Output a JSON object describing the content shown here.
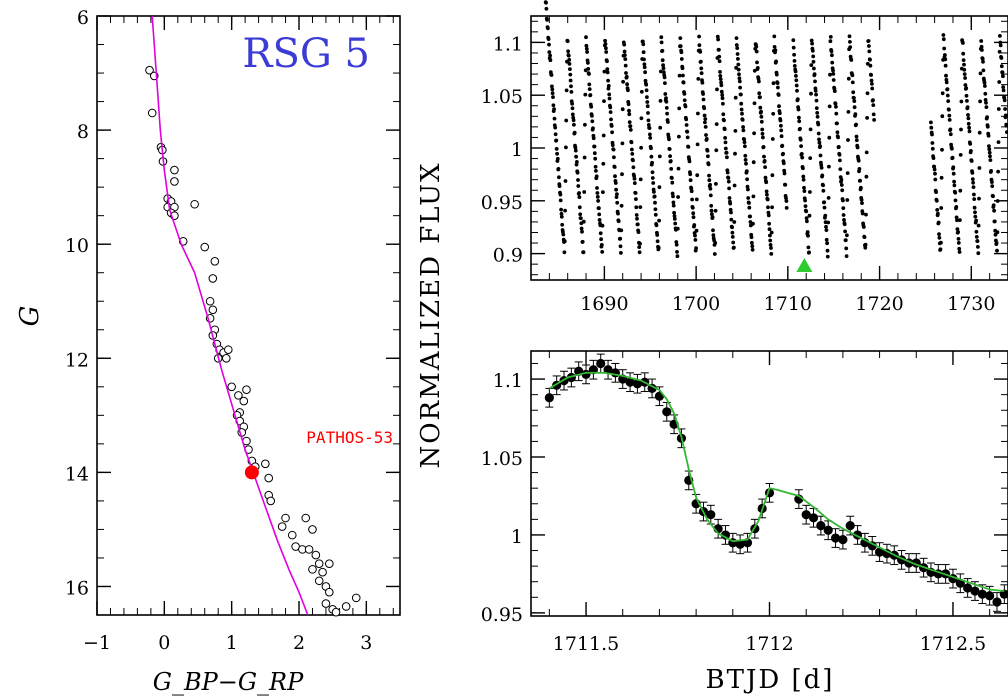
{
  "chart_data": [
    {
      "type": "scatter",
      "title": "RSG 5",
      "xlabel": "G_BP−G_RP",
      "ylabel": "G",
      "xlim": [
        -1,
        3.5
      ],
      "ylim": [
        16.5,
        6
      ],
      "x_ticks": [
        "−1",
        "0",
        "1",
        "2",
        "3"
      ],
      "x_tick_values": [
        -1,
        0,
        1,
        2,
        3
      ],
      "y_ticks": [
        "6",
        "8",
        "10",
        "12",
        "14",
        "16"
      ],
      "y_tick_values": [
        6,
        8,
        10,
        12,
        14,
        16
      ],
      "title_color": "#3b3bd6",
      "isochrone_color": "#e000e0",
      "highlight_color": "#ff0000",
      "highlight": {
        "label": "PATHOS-53",
        "x": 1.3,
        "y": 14.0
      },
      "isochrone": [
        [
          -0.18,
          6.0
        ],
        [
          -0.12,
          7.0
        ],
        [
          -0.06,
          8.0
        ],
        [
          0.0,
          8.7
        ],
        [
          0.08,
          9.4
        ],
        [
          0.25,
          10.0
        ],
        [
          0.45,
          10.5
        ],
        [
          0.65,
          11.3
        ],
        [
          0.85,
          12.2
        ],
        [
          1.05,
          13.0
        ],
        [
          1.2,
          13.6
        ],
        [
          1.35,
          14.1
        ],
        [
          1.5,
          14.6
        ],
        [
          1.68,
          15.2
        ],
        [
          1.85,
          15.7
        ],
        [
          2.0,
          16.1
        ],
        [
          2.13,
          16.5
        ]
      ],
      "stars": [
        [
          -0.22,
          6.95
        ],
        [
          -0.15,
          7.05
        ],
        [
          -0.18,
          7.7
        ],
        [
          -0.05,
          8.3
        ],
        [
          -0.03,
          8.35
        ],
        [
          -0.02,
          8.55
        ],
        [
          0.15,
          8.7
        ],
        [
          0.15,
          8.9
        ],
        [
          0.05,
          9.2
        ],
        [
          0.1,
          9.25
        ],
        [
          0.05,
          9.35
        ],
        [
          0.15,
          9.35
        ],
        [
          0.1,
          9.45
        ],
        [
          0.15,
          9.5
        ],
        [
          0.45,
          9.3
        ],
        [
          0.28,
          9.95
        ],
        [
          0.6,
          10.05
        ],
        [
          0.75,
          10.3
        ],
        [
          0.72,
          10.6
        ],
        [
          0.68,
          11.0
        ],
        [
          0.72,
          11.15
        ],
        [
          0.68,
          11.3
        ],
        [
          0.75,
          11.5
        ],
        [
          0.72,
          11.6
        ],
        [
          0.78,
          11.75
        ],
        [
          0.82,
          11.85
        ],
        [
          0.88,
          11.9
        ],
        [
          0.95,
          11.85
        ],
        [
          0.8,
          12.0
        ],
        [
          0.92,
          12.0
        ],
        [
          1.0,
          12.5
        ],
        [
          1.22,
          12.55
        ],
        [
          1.1,
          12.65
        ],
        [
          1.18,
          12.75
        ],
        [
          1.12,
          12.95
        ],
        [
          1.08,
          13.0
        ],
        [
          1.12,
          13.1
        ],
        [
          1.18,
          13.2
        ],
        [
          1.15,
          13.3
        ],
        [
          1.22,
          13.45
        ],
        [
          1.25,
          13.6
        ],
        [
          1.3,
          13.8
        ],
        [
          1.35,
          13.9
        ],
        [
          1.5,
          13.85
        ],
        [
          1.55,
          14.1
        ],
        [
          1.55,
          14.4
        ],
        [
          1.58,
          14.5
        ],
        [
          1.8,
          14.8
        ],
        [
          2.1,
          14.8
        ],
        [
          1.75,
          14.95
        ],
        [
          1.9,
          15.1
        ],
        [
          2.2,
          15.0
        ],
        [
          1.95,
          15.3
        ],
        [
          2.05,
          15.35
        ],
        [
          2.15,
          15.35
        ],
        [
          2.25,
          15.45
        ],
        [
          2.3,
          15.6
        ],
        [
          2.2,
          15.7
        ],
        [
          2.35,
          15.75
        ],
        [
          2.45,
          15.6
        ],
        [
          2.3,
          15.9
        ],
        [
          2.4,
          16.0
        ],
        [
          2.45,
          16.1
        ],
        [
          2.4,
          16.3
        ],
        [
          2.5,
          16.4
        ],
        [
          2.55,
          16.45
        ],
        [
          2.7,
          16.35
        ],
        [
          2.85,
          16.2
        ]
      ]
    },
    {
      "type": "scatter",
      "xlabel": "",
      "ylabel": "",
      "xlim": [
        1682,
        1734
      ],
      "ylim": [
        0.875,
        1.125
      ],
      "x_ticks": [
        "1690",
        "1700",
        "1710",
        "1720",
        "1730"
      ],
      "x_tick_values": [
        1690,
        1700,
        1710,
        1720,
        1730
      ],
      "y_ticks": [
        "1.1",
        "1.05",
        "1",
        "0.95",
        "0.9"
      ],
      "y_tick_values": [
        1.1,
        1.05,
        1.0,
        0.95,
        0.9
      ],
      "marker_color": "#000000",
      "arrow_color": "#2ecc2e",
      "arrow_x": 1711.8,
      "period": 2.05,
      "flux_min": 0.9,
      "flux_max": 1.105,
      "segments": [
        [
          1683.2,
          1709.9
        ],
        [
          1710.6,
          1719.4
        ],
        [
          1725.6,
          1733.9
        ]
      ],
      "cadence": 0.04
    },
    {
      "type": "line",
      "xlabel": "BTJD [d]",
      "ylabel": "NORMALIZED FLUX",
      "xlim": [
        1711.35,
        1712.65
      ],
      "ylim": [
        0.948,
        1.118
      ],
      "x_ticks": [
        "1711.5",
        "1712",
        "1712.5"
      ],
      "x_tick_values": [
        1711.5,
        1712.0,
        1712.5
      ],
      "y_ticks": [
        "1.1",
        "1.05",
        "1",
        "0.95"
      ],
      "y_tick_values": [
        1.1,
        1.05,
        1.0,
        0.95
      ],
      "model_color": "#33b833",
      "error": 0.006,
      "points": [
        [
          1711.4,
          1.088
        ],
        [
          1711.42,
          1.096
        ],
        [
          1711.44,
          1.099
        ],
        [
          1711.46,
          1.101
        ],
        [
          1711.48,
          1.105
        ],
        [
          1711.5,
          1.103
        ],
        [
          1711.52,
          1.106
        ],
        [
          1711.54,
          1.11
        ],
        [
          1711.56,
          1.106
        ],
        [
          1711.58,
          1.104
        ],
        [
          1711.6,
          1.1
        ],
        [
          1711.62,
          1.098
        ],
        [
          1711.64,
          1.097
        ],
        [
          1711.66,
          1.098
        ],
        [
          1711.68,
          1.094
        ],
        [
          1711.7,
          1.089
        ],
        [
          1711.72,
          1.079
        ],
        [
          1711.74,
          1.071
        ],
        [
          1711.76,
          1.062
        ],
        [
          1711.78,
          1.035
        ],
        [
          1711.8,
          1.02
        ],
        [
          1711.82,
          1.015
        ],
        [
          1711.84,
          1.013
        ],
        [
          1711.86,
          1.004
        ],
        [
          1711.88,
          1.0
        ],
        [
          1711.9,
          0.995
        ],
        [
          1711.92,
          0.994
        ],
        [
          1711.94,
          0.995
        ],
        [
          1711.96,
          1.004
        ],
        [
          1711.98,
          1.017
        ],
        [
          1712.0,
          1.027
        ],
        [
          1712.08,
          1.023
        ],
        [
          1712.1,
          1.013
        ],
        [
          1712.12,
          1.011
        ],
        [
          1712.14,
          1.006
        ],
        [
          1712.16,
          1.003
        ],
        [
          1712.18,
          0.998
        ],
        [
          1712.2,
          0.997
        ],
        [
          1712.22,
          1.006
        ],
        [
          1712.24,
          1.0
        ],
        [
          1712.26,
          0.995
        ],
        [
          1712.28,
          0.993
        ],
        [
          1712.3,
          0.989
        ],
        [
          1712.32,
          0.988
        ],
        [
          1712.34,
          0.987
        ],
        [
          1712.36,
          0.984
        ],
        [
          1712.38,
          0.982
        ],
        [
          1712.4,
          0.982
        ],
        [
          1712.42,
          0.979
        ],
        [
          1712.44,
          0.976
        ],
        [
          1712.46,
          0.975
        ],
        [
          1712.48,
          0.975
        ],
        [
          1712.5,
          0.972
        ],
        [
          1712.52,
          0.969
        ],
        [
          1712.54,
          0.966
        ],
        [
          1712.56,
          0.964
        ],
        [
          1712.58,
          0.962
        ],
        [
          1712.6,
          0.961
        ],
        [
          1712.62,
          0.957
        ],
        [
          1712.64,
          0.962
        ]
      ],
      "model": [
        [
          1711.4,
          1.094
        ],
        [
          1711.45,
          1.101
        ],
        [
          1711.5,
          1.104
        ],
        [
          1711.55,
          1.104
        ],
        [
          1711.6,
          1.102
        ],
        [
          1711.65,
          1.099
        ],
        [
          1711.7,
          1.093
        ],
        [
          1711.72,
          1.087
        ],
        [
          1711.74,
          1.078
        ],
        [
          1711.76,
          1.063
        ],
        [
          1711.78,
          1.042
        ],
        [
          1711.8,
          1.024
        ],
        [
          1711.83,
          1.01
        ],
        [
          1711.86,
          1.001
        ],
        [
          1711.9,
          0.996
        ],
        [
          1711.94,
          0.997
        ],
        [
          1711.97,
          1.009
        ],
        [
          1712.0,
          1.03
        ],
        [
          1712.02,
          1.029
        ],
        [
          1712.05,
          1.027
        ],
        [
          1712.08,
          1.025
        ],
        [
          1712.12,
          1.018
        ],
        [
          1712.16,
          1.01
        ],
        [
          1712.2,
          1.004
        ],
        [
          1712.25,
          0.998
        ],
        [
          1712.3,
          0.992
        ],
        [
          1712.35,
          0.986
        ],
        [
          1712.4,
          0.981
        ],
        [
          1712.45,
          0.977
        ],
        [
          1712.5,
          0.973
        ],
        [
          1712.55,
          0.969
        ],
        [
          1712.6,
          0.965
        ],
        [
          1712.64,
          0.964
        ]
      ]
    }
  ]
}
